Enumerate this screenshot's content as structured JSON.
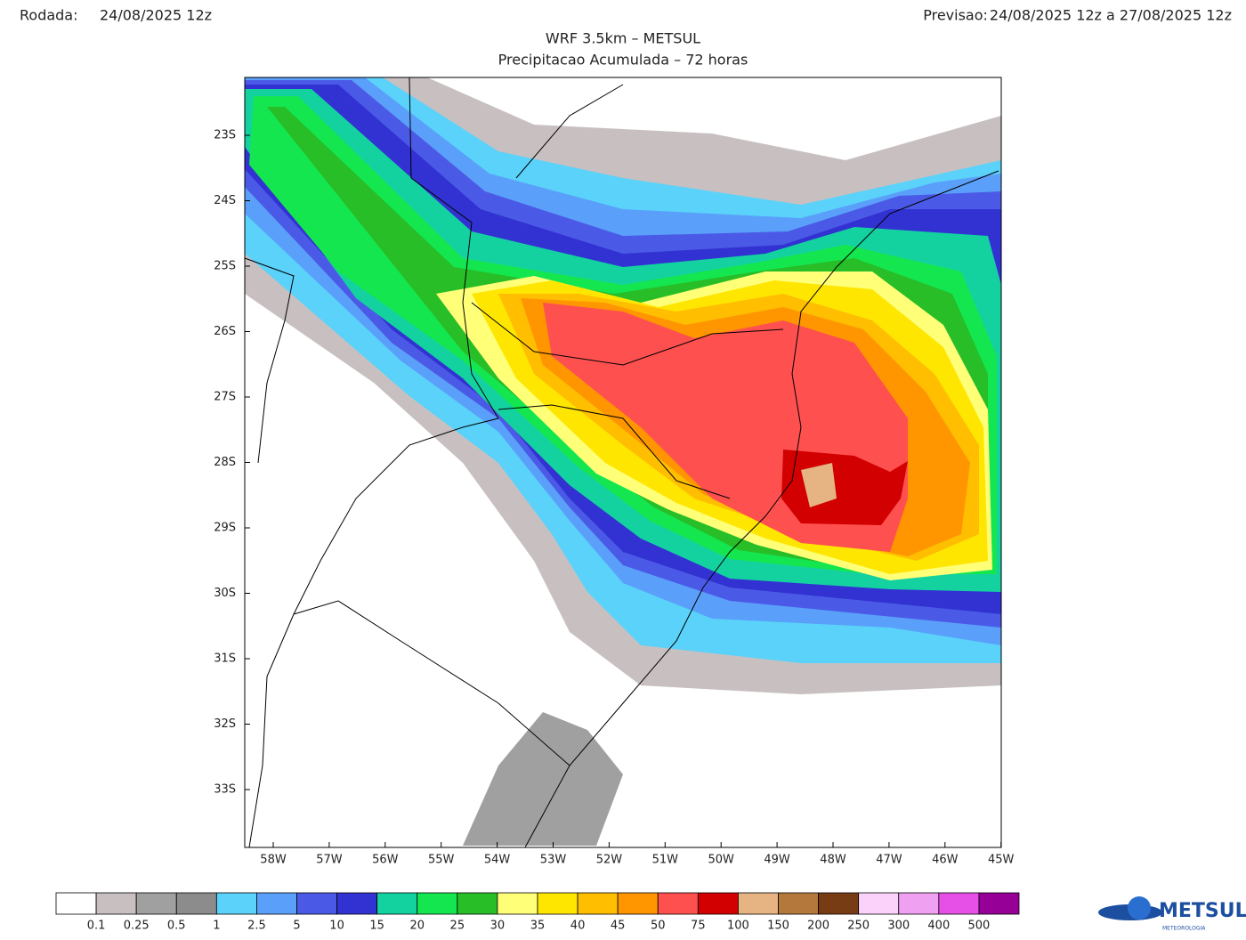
{
  "header": {
    "run_label": "Rodada:",
    "run_value": "24/08/2025 12z",
    "forecast_label": "Previsao:",
    "forecast_value": "24/08/2025 12z a 27/08/2025 12z"
  },
  "title": "WRF 3.5km – METSUL",
  "subtitle": "Precipitacao Acumulada – 72 horas",
  "map": {
    "lat_labels": [
      "23S",
      "24S",
      "25S",
      "26S",
      "27S",
      "28S",
      "29S",
      "30S",
      "31S",
      "32S",
      "33S"
    ],
    "lon_labels": [
      "58W",
      "57W",
      "56W",
      "55W",
      "54W",
      "53W",
      "52W",
      "51W",
      "50W",
      "49W",
      "48W",
      "47W",
      "46W",
      "45W"
    ]
  },
  "legend": {
    "colors": [
      "#ffffff",
      "#c8c0c0",
      "#a0a0a0",
      "#8c8c8c",
      "#5ad2fa",
      "#5aa0fa",
      "#4b5ae6",
      "#3232d2",
      "#14d2a0",
      "#14e650",
      "#28be28",
      "#ffff78",
      "#ffe600",
      "#ffbe00",
      "#ff9600",
      "#ff5050",
      "#d20000",
      "#e6b482",
      "#b4783c",
      "#783c14",
      "#fad2fa",
      "#f0a0f0",
      "#e650e6",
      "#960096"
    ],
    "labels": [
      "0.1",
      "0.25",
      "0.5",
      "1",
      "2.5",
      "5",
      "10",
      "15",
      "20",
      "25",
      "30",
      "35",
      "40",
      "45",
      "50",
      "75",
      "100",
      "150",
      "200",
      "250",
      "300",
      "400",
      "500"
    ]
  },
  "logo": {
    "name": "METSUL",
    "tagline": "METEOROLOGIA"
  }
}
